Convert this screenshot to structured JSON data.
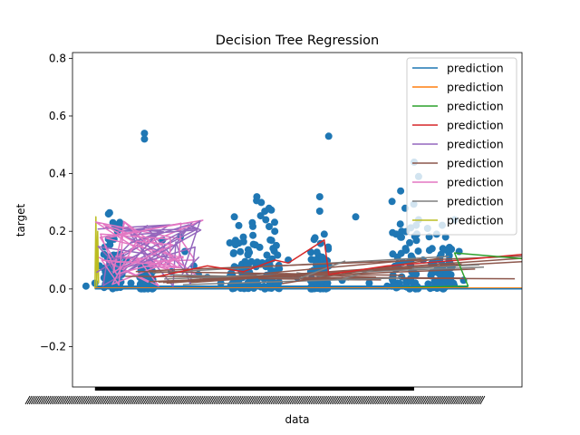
{
  "chart_data": {
    "type": "scatter",
    "title": "Decision Tree Regression",
    "xlabel": "data",
    "ylabel": "target",
    "ylim": [
      -0.34,
      0.82
    ],
    "yticks": [
      -0.2,
      0.0,
      0.2,
      0.4,
      0.6,
      0.8
    ],
    "ytick_labels": [
      "−0.2",
      "0.0",
      "0.2",
      "0.4",
      "0.6",
      "0.8"
    ],
    "x_tick_labels": "illegible (hundreds of overlapping category labels)",
    "grid": false,
    "legend_position": "top-right",
    "scatter_series": {
      "color": "#1f77b4",
      "points_approx": [
        [
          0.03,
          0.01
        ],
        [
          0.05,
          0.02
        ],
        [
          0.06,
          0.08
        ],
        [
          0.07,
          0.12
        ],
        [
          0.08,
          0.26
        ],
        [
          0.09,
          0.23
        ],
        [
          0.1,
          0.2
        ],
        [
          0.11,
          0.05
        ],
        [
          0.12,
          0.1
        ],
        [
          0.13,
          0.02
        ],
        [
          0.15,
          0.04
        ],
        [
          0.16,
          0.54
        ],
        [
          0.16,
          0.52
        ],
        [
          0.17,
          0.03
        ],
        [
          0.2,
          0.17
        ],
        [
          0.22,
          0.06
        ],
        [
          0.24,
          0.18
        ],
        [
          0.25,
          0.13
        ],
        [
          0.27,
          0.08
        ],
        [
          0.28,
          0.05
        ],
        [
          0.3,
          0.04
        ],
        [
          0.33,
          0.02
        ],
        [
          0.36,
          0.25
        ],
        [
          0.37,
          0.22
        ],
        [
          0.38,
          0.18
        ],
        [
          0.39,
          0.12
        ],
        [
          0.4,
          0.23
        ],
        [
          0.41,
          0.32
        ],
        [
          0.42,
          0.3
        ],
        [
          0.43,
          0.24
        ],
        [
          0.44,
          0.17
        ],
        [
          0.45,
          0.2
        ],
        [
          0.46,
          0.07
        ],
        [
          0.48,
          0.1
        ],
        [
          0.5,
          0.04
        ],
        [
          0.53,
          0.06
        ],
        [
          0.54,
          0.1
        ],
        [
          0.55,
          0.32
        ],
        [
          0.55,
          0.27
        ],
        [
          0.56,
          0.19
        ],
        [
          0.57,
          0.08
        ],
        [
          0.57,
          0.53
        ],
        [
          0.6,
          0.03
        ],
        [
          0.63,
          0.25
        ],
        [
          0.66,
          0.02
        ],
        [
          0.7,
          0.01
        ],
        [
          0.72,
          0.19
        ],
        [
          0.73,
          0.34
        ],
        [
          0.74,
          0.28
        ],
        [
          0.75,
          0.16
        ],
        [
          0.76,
          0.44
        ],
        [
          0.77,
          0.39
        ],
        [
          0.77,
          0.24
        ],
        [
          0.78,
          0.1
        ],
        [
          0.79,
          0.21
        ],
        [
          0.8,
          0.14
        ],
        [
          0.81,
          0.19
        ],
        [
          0.82,
          0.12
        ],
        [
          0.83,
          0.18
        ],
        [
          0.84,
          0.08
        ],
        [
          0.85,
          0.24
        ],
        [
          0.86,
          0.13
        ],
        [
          0.87,
          0.03
        ]
      ]
    },
    "series": [
      {
        "name": "prediction",
        "color": "#1f77b4"
      },
      {
        "name": "prediction",
        "color": "#ff7f0e"
      },
      {
        "name": "prediction",
        "color": "#2ca02c"
      },
      {
        "name": "prediction",
        "color": "#d62728"
      },
      {
        "name": "prediction",
        "color": "#9467bd"
      },
      {
        "name": "prediction",
        "color": "#8c564b"
      },
      {
        "name": "prediction",
        "color": "#e377c2"
      },
      {
        "name": "prediction",
        "color": "#7f7f7f"
      },
      {
        "name": "prediction",
        "color": "#bcbd22"
      }
    ]
  }
}
